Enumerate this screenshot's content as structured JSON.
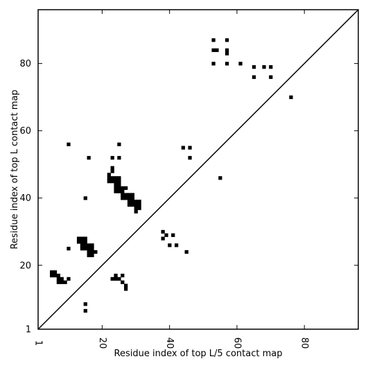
{
  "chart_data": {
    "type": "scatter",
    "title": "",
    "xlabel": "Residue index of top L/5 contact map",
    "ylabel": "Residue index of top L contact map",
    "xlim": [
      1,
      96
    ],
    "ylim": [
      1,
      96
    ],
    "xticks": [
      1,
      20,
      40,
      60,
      80
    ],
    "yticks": [
      1,
      20,
      40,
      60,
      80
    ],
    "grid": false,
    "diagonal": true,
    "marker": "square",
    "marker_color": "#000000",
    "points": [
      [
        5,
        18
      ],
      [
        6,
        18
      ],
      [
        5,
        17
      ],
      [
        6,
        17
      ],
      [
        7,
        17
      ],
      [
        7,
        16
      ],
      [
        8,
        16
      ],
      [
        7,
        15
      ],
      [
        8,
        15
      ],
      [
        9,
        15
      ],
      [
        10,
        16
      ],
      [
        10,
        25
      ],
      [
        10,
        56
      ],
      [
        13,
        27
      ],
      [
        14,
        27
      ],
      [
        15,
        27
      ],
      [
        13,
        28
      ],
      [
        14,
        28
      ],
      [
        15,
        28
      ],
      [
        14,
        26
      ],
      [
        15,
        26
      ],
      [
        16,
        26
      ],
      [
        17,
        26
      ],
      [
        14,
        25
      ],
      [
        15,
        25
      ],
      [
        16,
        25
      ],
      [
        17,
        25
      ],
      [
        16,
        24
      ],
      [
        17,
        24
      ],
      [
        18,
        24
      ],
      [
        16,
        23
      ],
      [
        17,
        23
      ],
      [
        15,
        40
      ],
      [
        16,
        52
      ],
      [
        15,
        8.5
      ],
      [
        15,
        6.5
      ],
      [
        23,
        16
      ],
      [
        24,
        16
      ],
      [
        25,
        16
      ],
      [
        24,
        17
      ],
      [
        26,
        17
      ],
      [
        26,
        15
      ],
      [
        27,
        14
      ],
      [
        27,
        13
      ],
      [
        23,
        52
      ],
      [
        25,
        52
      ],
      [
        25,
        56
      ],
      [
        23,
        49
      ],
      [
        23,
        48
      ],
      [
        22,
        47
      ],
      [
        22,
        46
      ],
      [
        23,
        46
      ],
      [
        24,
        46
      ],
      [
        25,
        46
      ],
      [
        22,
        45
      ],
      [
        23,
        45
      ],
      [
        24,
        45
      ],
      [
        25,
        45
      ],
      [
        24,
        44
      ],
      [
        25,
        44
      ],
      [
        24,
        43
      ],
      [
        25,
        43
      ],
      [
        26,
        43
      ],
      [
        27,
        43
      ],
      [
        24,
        42
      ],
      [
        25,
        42
      ],
      [
        26,
        42
      ],
      [
        26,
        41
      ],
      [
        27,
        41
      ],
      [
        28,
        41
      ],
      [
        29,
        41
      ],
      [
        26,
        40
      ],
      [
        27,
        40
      ],
      [
        28,
        40
      ],
      [
        29,
        40
      ],
      [
        28,
        39
      ],
      [
        29,
        39
      ],
      [
        30,
        39
      ],
      [
        31,
        39
      ],
      [
        28,
        38
      ],
      [
        29,
        38
      ],
      [
        30,
        38
      ],
      [
        31,
        38
      ],
      [
        30,
        37
      ],
      [
        31,
        37
      ],
      [
        30,
        36
      ],
      [
        38,
        30
      ],
      [
        38,
        28
      ],
      [
        39,
        29
      ],
      [
        41,
        29
      ],
      [
        40,
        26
      ],
      [
        42,
        26
      ],
      [
        45,
        24
      ],
      [
        44,
        55
      ],
      [
        46,
        55
      ],
      [
        46,
        52
      ],
      [
        55,
        46
      ],
      [
        53,
        87
      ],
      [
        57,
        87
      ],
      [
        53,
        84
      ],
      [
        54,
        84
      ],
      [
        57,
        84
      ],
      [
        57,
        83
      ],
      [
        53,
        80
      ],
      [
        57,
        80
      ],
      [
        61,
        80
      ],
      [
        65,
        79
      ],
      [
        68,
        79
      ],
      [
        70,
        79
      ],
      [
        65,
        76
      ],
      [
        70,
        76
      ],
      [
        76,
        70
      ]
    ]
  }
}
